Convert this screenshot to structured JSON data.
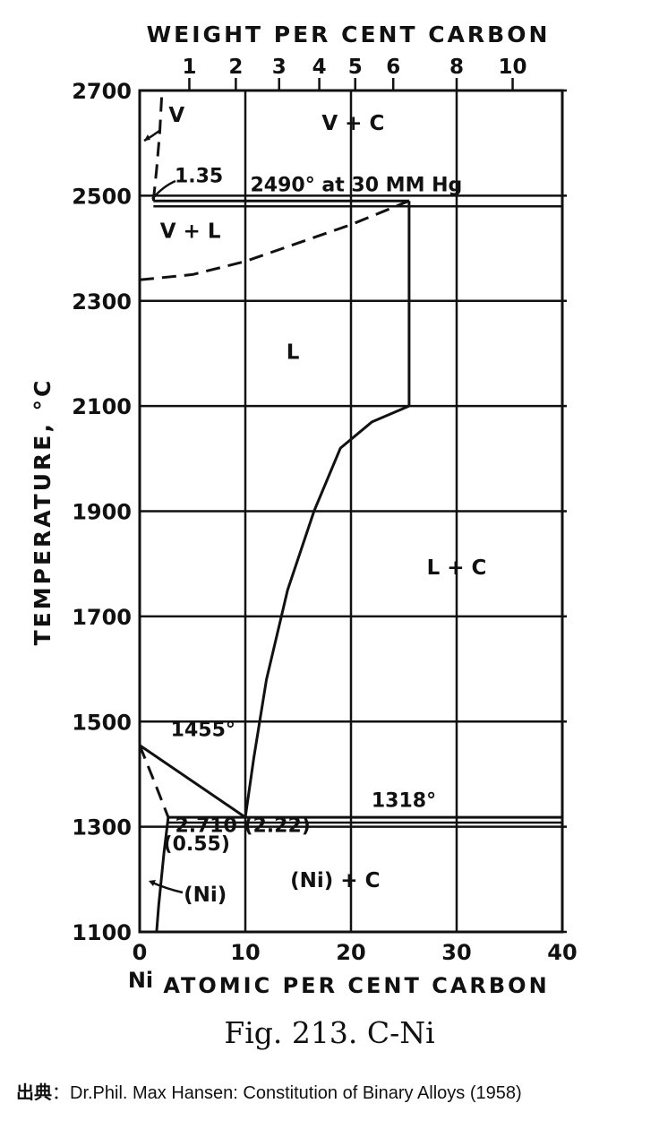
{
  "chart_data": {
    "type": "phase-diagram",
    "x_bottom": {
      "label": "ATOMIC PER CENT CARBON",
      "range": [
        0,
        40
      ],
      "ticks": [
        0,
        10,
        20,
        30,
        40
      ],
      "tick_labels": [
        "0",
        "10",
        "20",
        "30",
        "40"
      ],
      "origin_label": "Ni"
    },
    "x_top": {
      "label": "WEIGHT PER CENT CARBON",
      "ticks": [
        {
          "label": "1",
          "at": 4.7
        },
        {
          "label": "2",
          "at": 9.1
        },
        {
          "label": "3",
          "at": 13.2
        },
        {
          "label": "4",
          "at": 17.0
        },
        {
          "label": "5",
          "at": 20.4
        },
        {
          "label": "6",
          "at": 24.0
        },
        {
          "label": "8",
          "at": 30.0
        },
        {
          "label": "10",
          "at": 35.3
        }
      ]
    },
    "y": {
      "label": "TEMPERATURE, °C",
      "range": [
        1100,
        2700
      ],
      "ticks": [
        1100,
        1300,
        1500,
        1700,
        1900,
        2100,
        2300,
        2500,
        2700
      ],
      "tick_labels": [
        "1100",
        "1300",
        "1500",
        "1700",
        "1900",
        "2100",
        "2300",
        "2500",
        "2700"
      ]
    },
    "grid": true,
    "solid_lines": [
      {
        "name": "vapor-liquid boundary",
        "points": [
          [
            1.3,
            2490
          ],
          [
            25.5,
            2490
          ]
        ]
      },
      {
        "name": "carbon liquidus upper",
        "points": [
          [
            25.5,
            2490
          ],
          [
            25.5,
            2100
          ]
        ]
      },
      {
        "name": "carbon liquidus",
        "points": [
          [
            25.5,
            2100
          ],
          [
            22,
            2070
          ],
          [
            19,
            2020
          ],
          [
            16.5,
            1900
          ],
          [
            14,
            1750
          ],
          [
            12,
            1580
          ],
          [
            10.8,
            1430
          ],
          [
            10,
            1318
          ]
        ]
      },
      {
        "name": "nickel liquidus",
        "points": [
          [
            0,
            1455
          ],
          [
            10,
            1318
          ]
        ]
      },
      {
        "name": "eutectic isotherm",
        "points": [
          [
            2.7,
            1318
          ],
          [
            40,
            1318
          ]
        ]
      },
      {
        "name": "solvus",
        "points": [
          [
            2.7,
            1318
          ],
          [
            2.3,
            1250
          ],
          [
            1.8,
            1150
          ],
          [
            1.6,
            1100
          ]
        ]
      }
    ],
    "dashed_lines": [
      {
        "name": "boiling curve",
        "points": [
          [
            0,
            2340
          ],
          [
            5,
            2350
          ],
          [
            10,
            2375
          ],
          [
            15,
            2410
          ],
          [
            20,
            2445
          ],
          [
            25.5,
            2490
          ]
        ]
      },
      {
        "name": "vapor boundary",
        "points": [
          [
            1.3,
            2490
          ],
          [
            1.6,
            2550
          ],
          [
            1.9,
            2620
          ],
          [
            2.1,
            2695
          ]
        ]
      },
      {
        "name": "solidus",
        "points": [
          [
            0,
            1455
          ],
          [
            1.5,
            1380
          ],
          [
            2.7,
            1318
          ]
        ]
      }
    ],
    "region_labels": [
      {
        "text": "V + C",
        "x": 20.2,
        "y": 2625
      },
      {
        "text": "V + L",
        "x": 4.8,
        "y": 2420
      },
      {
        "text": "L",
        "x": 14.5,
        "y": 2190
      },
      {
        "text": "L + C",
        "x": 30,
        "y": 1780
      },
      {
        "text": "(Ni) + C",
        "x": 18.5,
        "y": 1185
      },
      {
        "text": "V",
        "x": 3.5,
        "y": 2640
      },
      {
        "text": "(Ni)",
        "x": 6.2,
        "y": 1158
      }
    ],
    "annotations": [
      {
        "text": "1.35",
        "x": 5.6,
        "y": 2525
      },
      {
        "text": "2490° at 30 MM  Hg",
        "x": 20.5,
        "y": 2508
      },
      {
        "text": "1455°",
        "x": 6.0,
        "y": 1472
      },
      {
        "text": "1318°",
        "x": 25,
        "y": 1338
      },
      {
        "text": "2.7",
        "x": 5.0,
        "y": 1290
      },
      {
        "text": "(0.55)",
        "x": 5.4,
        "y": 1255
      },
      {
        "text": "10 (2.22)",
        "x": 11.4,
        "y": 1290
      }
    ]
  },
  "caption": "Fig. 213. C-Ni",
  "source_prefix": "出典",
  "source_text": "：Dr.Phil. Max Hansen: Constitution of Binary Alloys (1958)"
}
